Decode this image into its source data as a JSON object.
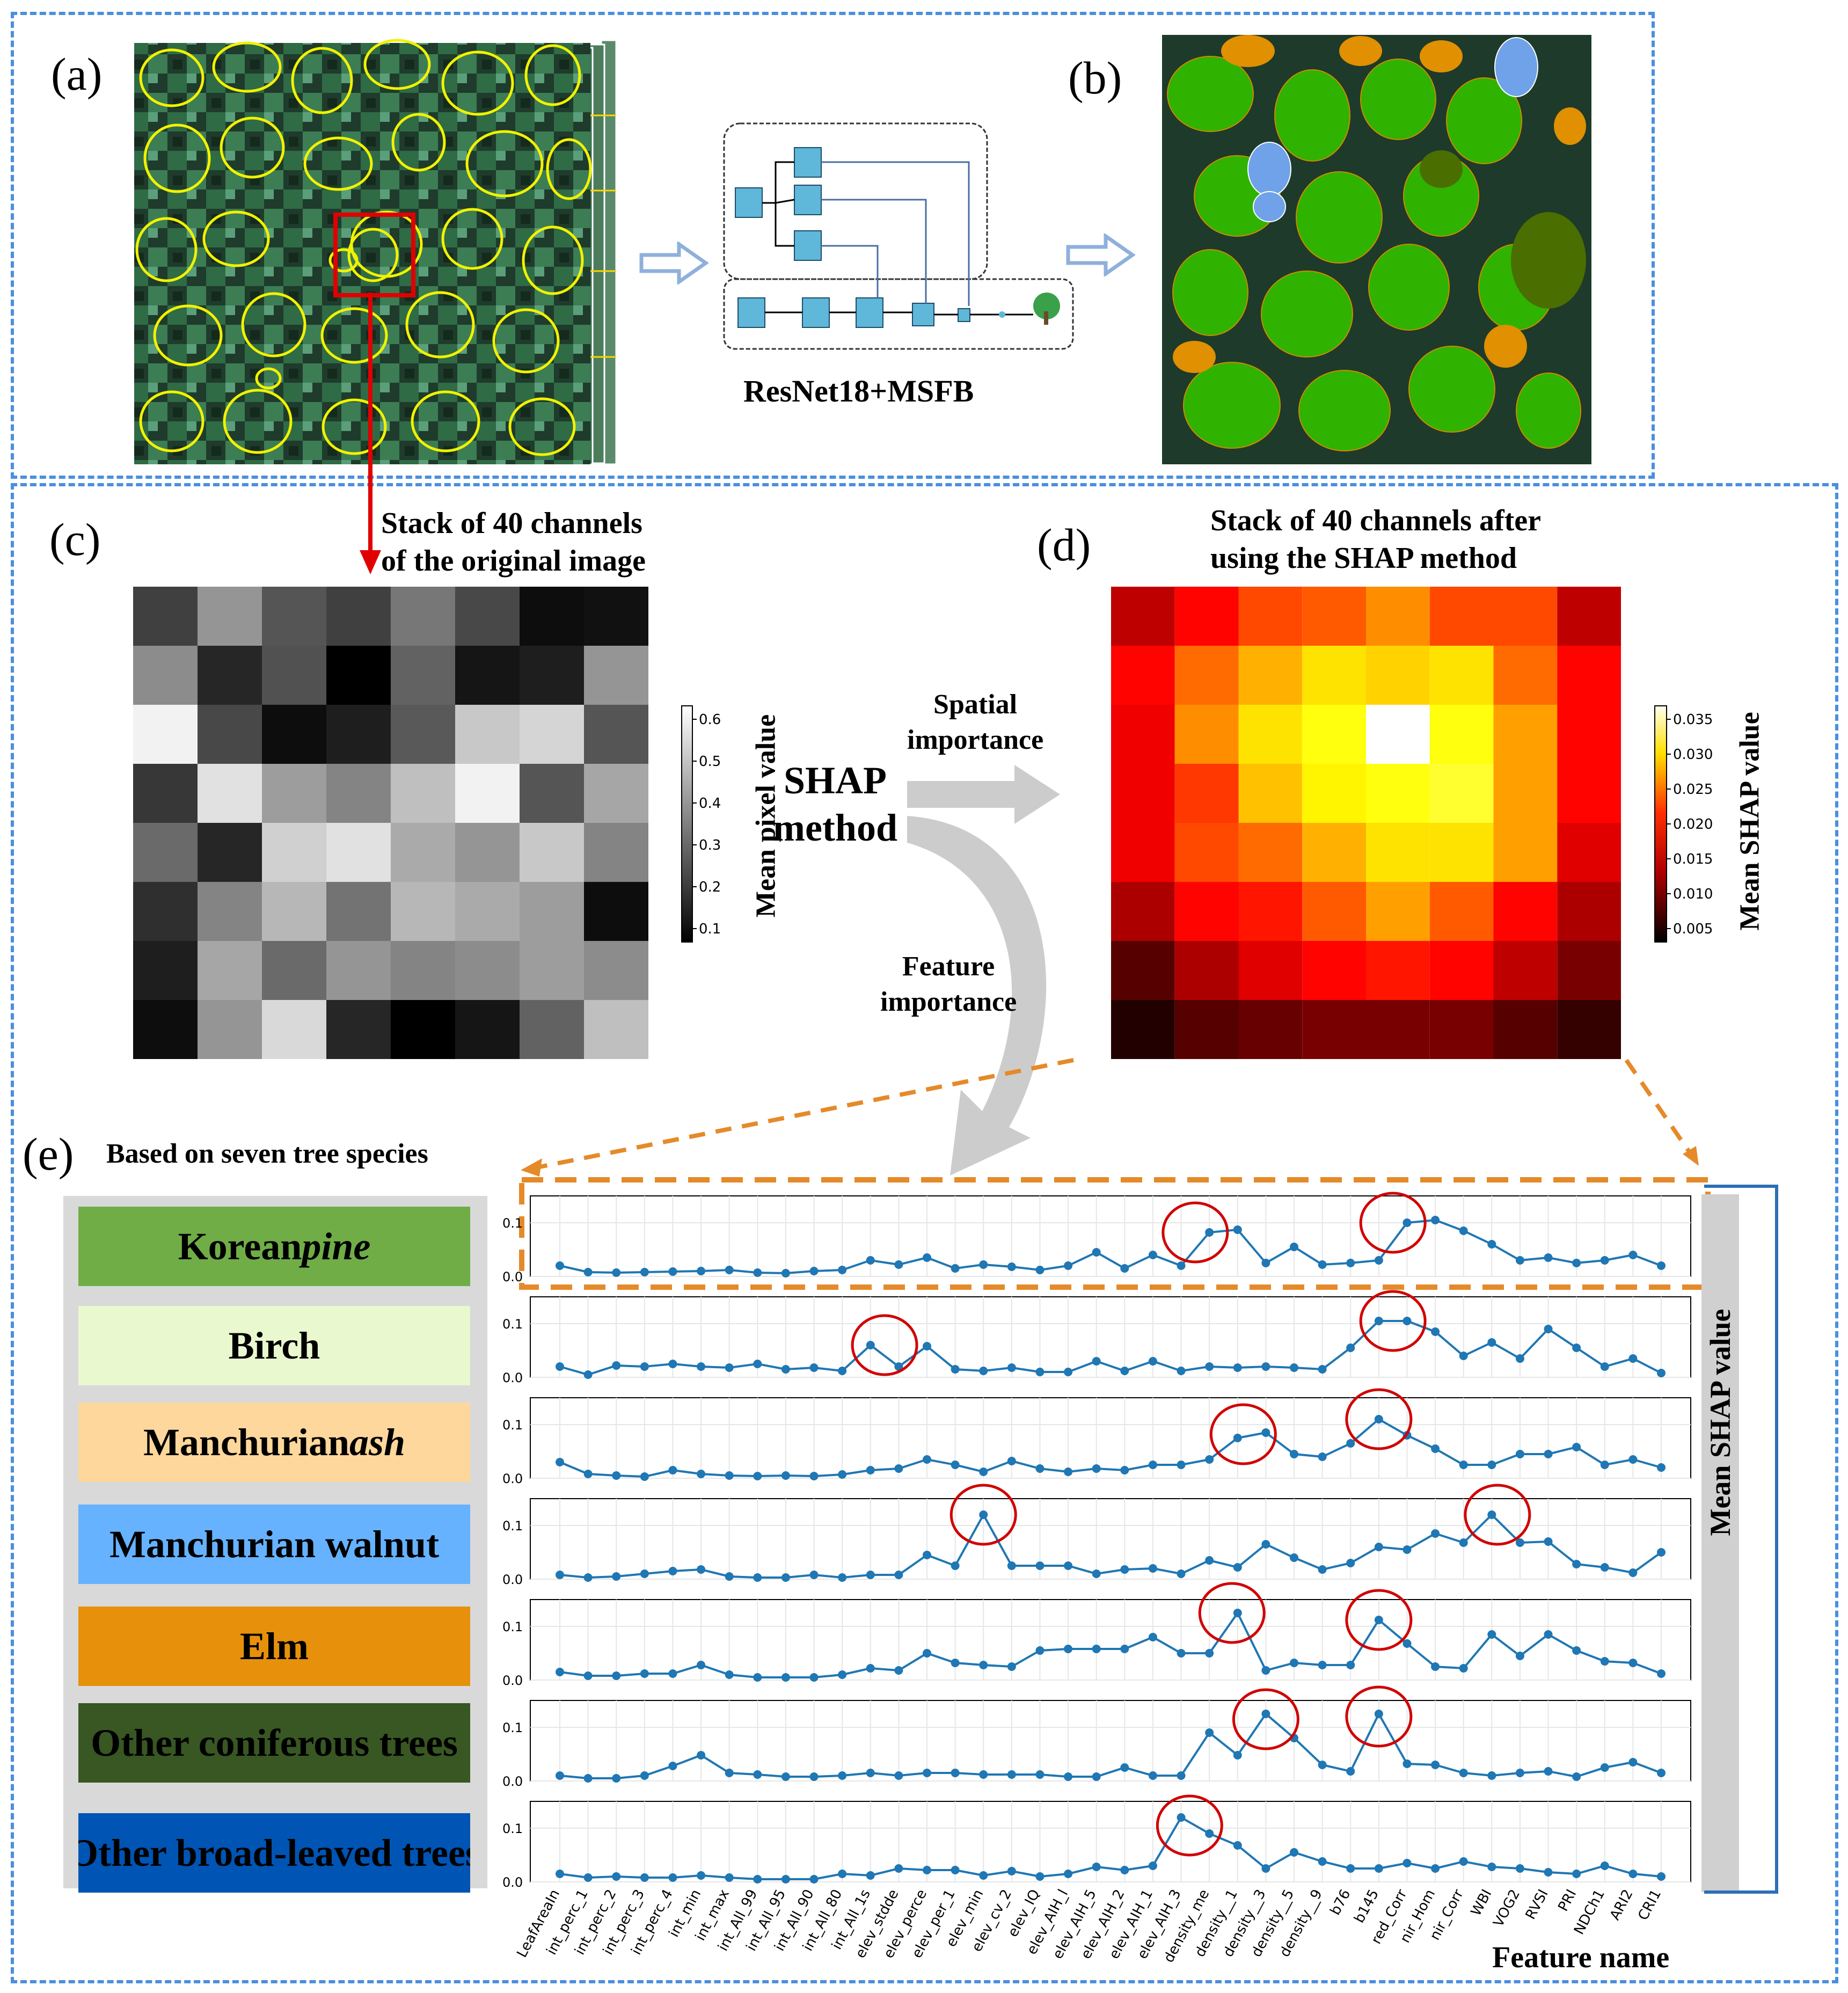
{
  "panel_labels": {
    "a": "(a)",
    "b": "(b)",
    "c": "(c)",
    "d": "(d)",
    "e": "(e)"
  },
  "network_label": "ResNet18+MSFB",
  "stack_original": [
    "Stack of 40 channels",
    "of the original image"
  ],
  "stack_shap": [
    "Stack of 40 channels after",
    "using the SHAP method"
  ],
  "shap_method": [
    "SHAP",
    "method"
  ],
  "spatial_importance": [
    "Spatial",
    "importance"
  ],
  "feature_importance": [
    "Feature",
    "importance"
  ],
  "species_title": "Based on seven tree species",
  "colorbar_c": {
    "title": "Mean pixel value",
    "ticks": [
      "0.6",
      "0.5",
      "0.4",
      "0.3",
      "0.2",
      "0.1"
    ]
  },
  "colorbar_d": {
    "title": "Mean SHAP value",
    "ticks": [
      "0.035",
      "0.030",
      "0.025",
      "0.020",
      "0.015",
      "0.010",
      "0.005"
    ]
  },
  "pixel_grid": [
    [
      0.2,
      0.4,
      0.25,
      0.2,
      0.33,
      0.22,
      0.08,
      0.09
    ],
    [
      0.38,
      0.14,
      0.24,
      0.05,
      0.28,
      0.1,
      0.12,
      0.4
    ],
    [
      0.62,
      0.22,
      0.08,
      0.12,
      0.26,
      0.52,
      0.55,
      0.25
    ],
    [
      0.18,
      0.58,
      0.42,
      0.36,
      0.5,
      0.62,
      0.25,
      0.44
    ],
    [
      0.3,
      0.14,
      0.54,
      0.58,
      0.45,
      0.4,
      0.52,
      0.36
    ],
    [
      0.16,
      0.36,
      0.48,
      0.32,
      0.48,
      0.45,
      0.42,
      0.08
    ],
    [
      0.12,
      0.44,
      0.3,
      0.4,
      0.36,
      0.38,
      0.42,
      0.38
    ],
    [
      0.08,
      0.4,
      0.56,
      0.14,
      0.05,
      0.1,
      0.28,
      0.5
    ]
  ],
  "shap_grid": [
    [
      0.012,
      0.016,
      0.02,
      0.021,
      0.024,
      0.02,
      0.02,
      0.012
    ],
    [
      0.016,
      0.022,
      0.026,
      0.029,
      0.028,
      0.029,
      0.022,
      0.016
    ],
    [
      0.015,
      0.024,
      0.029,
      0.031,
      0.038,
      0.031,
      0.025,
      0.016
    ],
    [
      0.015,
      0.019,
      0.027,
      0.03,
      0.031,
      0.032,
      0.025,
      0.016
    ],
    [
      0.015,
      0.02,
      0.022,
      0.026,
      0.029,
      0.029,
      0.025,
      0.014
    ],
    [
      0.011,
      0.016,
      0.017,
      0.021,
      0.025,
      0.021,
      0.016,
      0.011
    ],
    [
      0.006,
      0.011,
      0.014,
      0.016,
      0.017,
      0.016,
      0.012,
      0.008
    ],
    [
      0.003,
      0.006,
      0.007,
      0.008,
      0.008,
      0.008,
      0.006,
      0.004
    ]
  ],
  "species": [
    {
      "name": "Korean ",
      "italic": "pine",
      "color": "#70ad47",
      "text": "#000"
    },
    {
      "name": "Birch",
      "italic": "",
      "color": "#e9f8cf",
      "text": "#000"
    },
    {
      "name": "Manchurian ",
      "italic": "ash",
      "color": "#fdd79b",
      "text": "#000"
    },
    {
      "name": "Manchurian walnut",
      "italic": "",
      "color": "#66b2ff",
      "text": "#000"
    },
    {
      "name": "Elm",
      "italic": "",
      "color": "#e6900c",
      "text": "#000"
    },
    {
      "name": "Other coniferous trees",
      "italic": "",
      "color": "#385723",
      "text": "#000"
    },
    {
      "name": "Other broad-leaved trees",
      "italic": "",
      "color": "#0054b3",
      "text": "#000"
    }
  ],
  "chart_data": {
    "type": "line",
    "xlabel": "Feature name",
    "ylabel": "Mean SHAP value",
    "yticks": [
      "0.0",
      "0.1"
    ],
    "ylim": [
      0,
      0.15
    ],
    "categories": [
      "LeafAreaIn",
      "int_perc_1",
      "int_perc_2",
      "int_perc_3",
      "int_perc_4",
      "int_min",
      "int_max",
      "int_All_99",
      "int_All_95",
      "int_All_90",
      "int_All_80",
      "int_All_1s",
      "elev_stdde",
      "elev_perce",
      "elev_per_1",
      "elev_min",
      "elev_cv_2",
      "elev_IQ",
      "elev_AIH_l",
      "elev_AIH_5",
      "elev_AIH_2",
      "elev_AIH_1",
      "elev_AIH_3",
      "density_me",
      "density__1",
      "density__3",
      "density__5",
      "density__9",
      "b76",
      "b145",
      "red_Corr",
      "nir_Hom",
      "nir_Corr",
      "WBI",
      "VOG2",
      "RVSI",
      "PRI",
      "NDCh1",
      "ARI2",
      "CRI1"
    ],
    "series": [
      {
        "values": [
          0.02,
          0.008,
          0.007,
          0.008,
          0.009,
          0.01,
          0.012,
          0.007,
          0.006,
          0.01,
          0.012,
          0.03,
          0.022,
          0.035,
          0.015,
          0.022,
          0.018,
          0.012,
          0.02,
          0.045,
          0.015,
          0.04,
          0.02,
          0.082,
          0.087,
          0.025,
          0.055,
          0.022,
          0.025,
          0.03,
          0.1,
          0.105,
          0.085,
          0.06,
          0.03,
          0.035,
          0.025,
          0.03,
          0.04,
          0.02
        ],
        "circles": [
          [
            22.5,
            0.082
          ],
          [
            29.5,
            0.1
          ]
        ]
      },
      {
        "values": [
          0.02,
          0.005,
          0.022,
          0.02,
          0.025,
          0.02,
          0.018,
          0.025,
          0.015,
          0.018,
          0.012,
          0.06,
          0.02,
          0.058,
          0.015,
          0.012,
          0.018,
          0.01,
          0.01,
          0.03,
          0.012,
          0.03,
          0.012,
          0.02,
          0.018,
          0.02,
          0.018,
          0.015,
          0.055,
          0.105,
          0.105,
          0.085,
          0.04,
          0.065,
          0.035,
          0.09,
          0.055,
          0.02,
          0.035,
          0.008
        ],
        "circles": [
          [
            11.5,
            0.06
          ],
          [
            29.5,
            0.105
          ]
        ]
      },
      {
        "values": [
          0.03,
          0.008,
          0.005,
          0.003,
          0.015,
          0.008,
          0.005,
          0.004,
          0.005,
          0.004,
          0.007,
          0.015,
          0.018,
          0.035,
          0.025,
          0.012,
          0.032,
          0.018,
          0.012,
          0.018,
          0.015,
          0.025,
          0.025,
          0.035,
          0.075,
          0.085,
          0.045,
          0.04,
          0.065,
          0.11,
          0.08,
          0.055,
          0.025,
          0.025,
          0.045,
          0.045,
          0.058,
          0.025,
          0.035,
          0.02
        ],
        "circles": [
          [
            24.2,
            0.082
          ],
          [
            29,
            0.11
          ]
        ]
      },
      {
        "values": [
          0.008,
          0.003,
          0.005,
          0.01,
          0.015,
          0.018,
          0.005,
          0.003,
          0.003,
          0.008,
          0.003,
          0.008,
          0.008,
          0.045,
          0.025,
          0.12,
          0.025,
          0.025,
          0.025,
          0.01,
          0.018,
          0.02,
          0.01,
          0.035,
          0.022,
          0.065,
          0.04,
          0.018,
          0.03,
          0.06,
          0.055,
          0.085,
          0.068,
          0.12,
          0.068,
          0.07,
          0.028,
          0.022,
          0.012,
          0.05
        ],
        "circles": [
          [
            15,
            0.12
          ],
          [
            33.2,
            0.12
          ]
        ]
      },
      {
        "values": [
          0.015,
          0.008,
          0.008,
          0.012,
          0.012,
          0.028,
          0.01,
          0.005,
          0.005,
          0.005,
          0.01,
          0.022,
          0.018,
          0.05,
          0.032,
          0.028,
          0.025,
          0.055,
          0.058,
          0.058,
          0.058,
          0.08,
          0.05,
          0.05,
          0.125,
          0.018,
          0.032,
          0.028,
          0.028,
          0.112,
          0.068,
          0.025,
          0.022,
          0.085,
          0.045,
          0.085,
          0.055,
          0.035,
          0.032,
          0.012
        ],
        "circles": [
          [
            23.8,
            0.125
          ],
          [
            29,
            0.112
          ]
        ]
      },
      {
        "values": [
          0.01,
          0.005,
          0.005,
          0.01,
          0.028,
          0.048,
          0.015,
          0.012,
          0.008,
          0.008,
          0.01,
          0.015,
          0.01,
          0.015,
          0.015,
          0.012,
          0.012,
          0.012,
          0.008,
          0.008,
          0.025,
          0.01,
          0.01,
          0.09,
          0.048,
          0.125,
          0.08,
          0.03,
          0.018,
          0.125,
          0.032,
          0.03,
          0.015,
          0.01,
          0.015,
          0.018,
          0.008,
          0.025,
          0.035,
          0.015
        ],
        "circles": [
          [
            25,
            0.115
          ],
          [
            29,
            0.12
          ]
        ]
      },
      {
        "values": [
          0.015,
          0.008,
          0.01,
          0.008,
          0.008,
          0.012,
          0.008,
          0.005,
          0.005,
          0.005,
          0.015,
          0.012,
          0.025,
          0.022,
          0.022,
          0.012,
          0.02,
          0.01,
          0.015,
          0.028,
          0.022,
          0.03,
          0.12,
          0.09,
          0.068,
          0.025,
          0.055,
          0.038,
          0.025,
          0.025,
          0.035,
          0.025,
          0.038,
          0.028,
          0.025,
          0.018,
          0.015,
          0.03,
          0.015,
          0.01
        ],
        "circles": [
          [
            22.3,
            0.105
          ]
        ]
      }
    ]
  }
}
